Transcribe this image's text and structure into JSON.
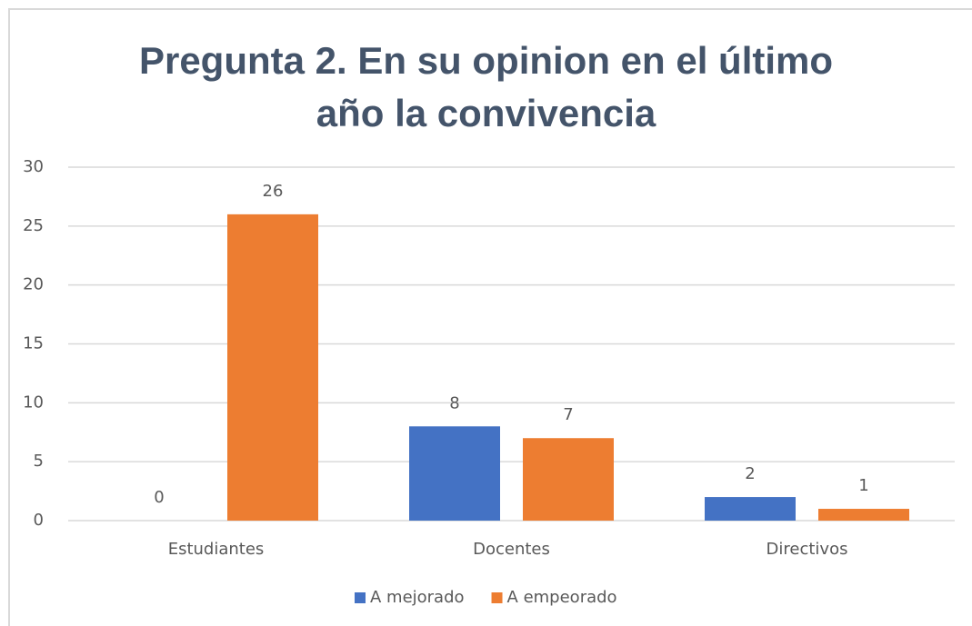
{
  "chart_data": {
    "type": "bar",
    "title": "Pregunta 2. En su opinion en el último año la convivencia",
    "categories": [
      "Estudiantes",
      "Docentes",
      "Directivos"
    ],
    "series": [
      {
        "name": "A mejorado",
        "color": "#4472c4",
        "values": [
          0,
          8,
          2
        ]
      },
      {
        "name": "A empeorado",
        "color": "#ed7d31",
        "values": [
          26,
          7,
          1
        ]
      }
    ],
    "ylim": [
      0,
      30
    ],
    "yticks": [
      0,
      5,
      10,
      15,
      20,
      25,
      30
    ],
    "grid": true,
    "legend": "bottom"
  }
}
